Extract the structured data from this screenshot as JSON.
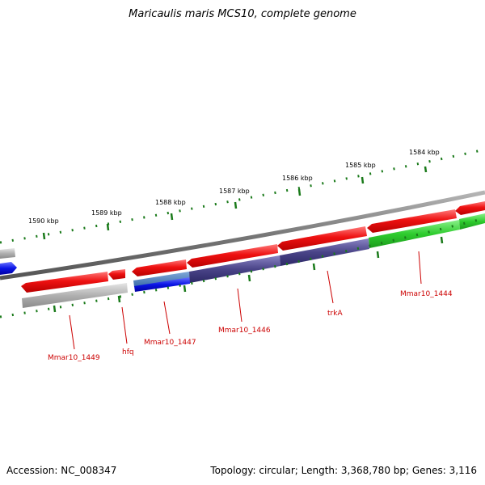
{
  "title": "Maricaulis maris MCS10, complete genome",
  "footer": {
    "accession": "Accession: NC_008347",
    "summary": "Topology: circular; Length: 3,368,780 bp; Genes: 3,116"
  },
  "ruler_labels": [
    "1584 kbp",
    "1585 kbp",
    "1586 kbp",
    "1587 kbp",
    "1588 kbp",
    "1589 kbp",
    "1590 kbp"
  ],
  "gene_labels": [
    "Mmar10_1444",
    "trkA",
    "Mmar10_1446",
    "Mmar10_1447",
    "hfq",
    "Mmar10_1449"
  ],
  "colors": {
    "forward_cds": "#ee1111",
    "reverse_cds": "#ee1111",
    "gene_gray": "#a8a8a8",
    "green": "#2ecc2e",
    "purple": "#4a4488",
    "blue": "#0a14e6",
    "ticks": "#1a7a1a",
    "backbone": "#777777",
    "label_red": "#cc0000"
  }
}
